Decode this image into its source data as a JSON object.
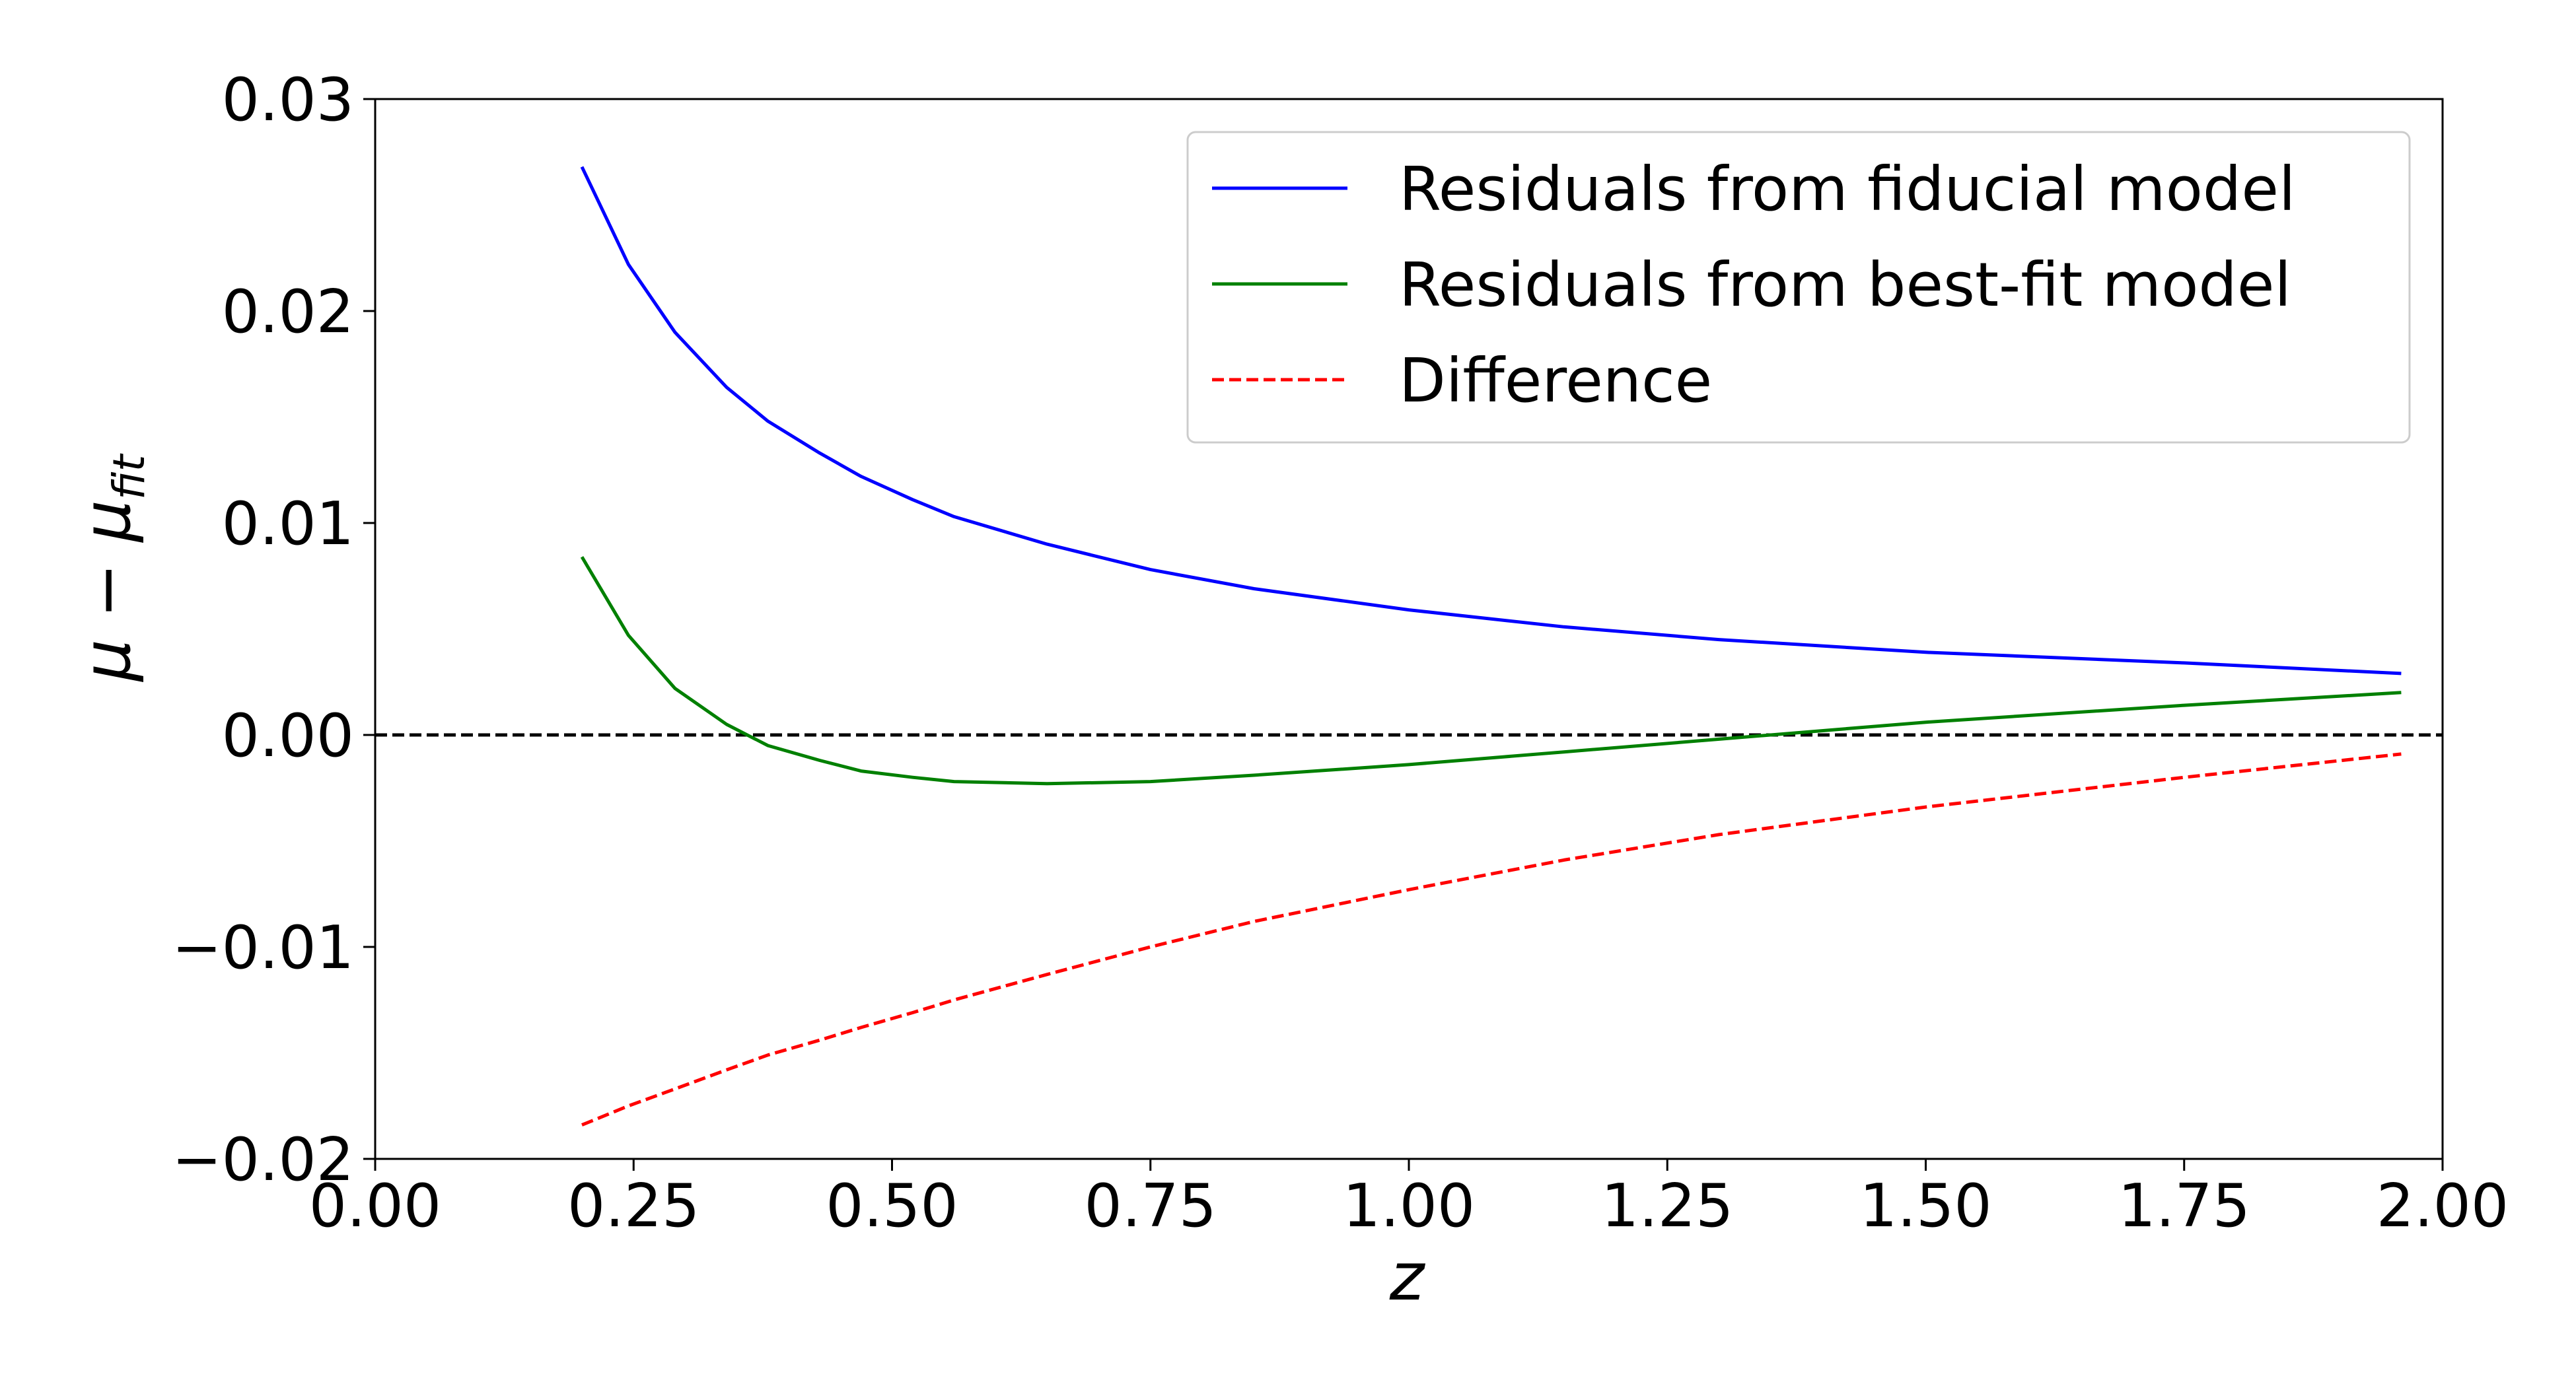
{
  "chart_data": {
    "type": "line",
    "title": "",
    "xlabel": "z",
    "ylabel": {
      "main": "μ − μ",
      "subscript": "fit"
    },
    "xlim": [
      0.0,
      2.0
    ],
    "ylim": [
      -0.02,
      0.03
    ],
    "xticks": [
      0.0,
      0.25,
      0.5,
      0.75,
      1.0,
      1.25,
      1.5,
      1.75,
      2.0
    ],
    "xtick_labels": [
      "0.00",
      "0.25",
      "0.50",
      "0.75",
      "1.00",
      "1.25",
      "1.50",
      "1.75",
      "2.00"
    ],
    "yticks": [
      -0.02,
      -0.01,
      0.0,
      0.01,
      0.02,
      0.03
    ],
    "ytick_labels": [
      "−0.02",
      "−0.01",
      "0.00",
      "0.01",
      "0.02",
      "0.03"
    ],
    "grid": false,
    "legend_position": "top-right",
    "reference_line": {
      "y": 0.0,
      "color": "#000000",
      "style": "dashed"
    },
    "x": [
      0.2,
      0.245,
      0.29,
      0.34,
      0.38,
      0.43,
      0.47,
      0.52,
      0.56,
      0.65,
      0.75,
      0.85,
      1.0,
      1.15,
      1.3,
      1.5,
      1.75,
      1.96
    ],
    "series": [
      {
        "name": "Residuals from fiducial model",
        "color": "#0000ff",
        "style": "solid",
        "values": [
          0.0268,
          0.0222,
          0.019,
          0.0164,
          0.0148,
          0.0133,
          0.0122,
          0.0111,
          0.0103,
          0.009,
          0.0078,
          0.0069,
          0.0059,
          0.0051,
          0.0045,
          0.0039,
          0.0034,
          0.0029
        ]
      },
      {
        "name": "Residuals from best-fit model",
        "color": "#008000",
        "style": "solid",
        "values": [
          0.0084,
          0.0047,
          0.0022,
          0.0005,
          -0.0005,
          -0.0012,
          -0.0017,
          -0.002,
          -0.0022,
          -0.0023,
          -0.0022,
          -0.0019,
          -0.0014,
          -0.0008,
          -0.0002,
          0.0006,
          0.0014,
          0.002
        ]
      },
      {
        "name": "Difference",
        "color": "#ff0000",
        "style": "dashed",
        "values": [
          -0.0184,
          -0.0175,
          -0.0167,
          -0.0158,
          -0.0151,
          -0.0144,
          -0.0138,
          -0.0131,
          -0.0125,
          -0.0113,
          -0.01,
          -0.0088,
          -0.0073,
          -0.0059,
          -0.0047,
          -0.0034,
          -0.002,
          -0.0009
        ]
      }
    ]
  }
}
